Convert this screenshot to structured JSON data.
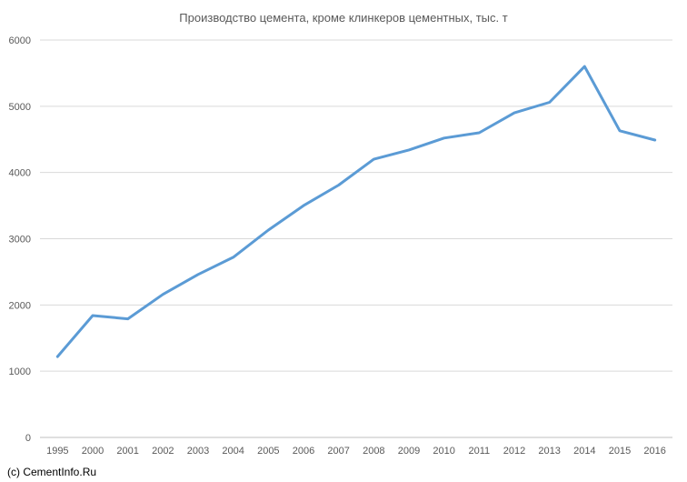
{
  "chart_data": {
    "type": "line",
    "title": "Производство цемента, кроме клинкеров цементных, тыс. т",
    "xlabel": "",
    "ylabel": "",
    "categories": [
      "1995",
      "2000",
      "2001",
      "2002",
      "2003",
      "2004",
      "2005",
      "2006",
      "2007",
      "2008",
      "2009",
      "2010",
      "2011",
      "2012",
      "2013",
      "2014",
      "2015",
      "2016"
    ],
    "series": [
      {
        "name": "",
        "values": [
          1220,
          1840,
          1790,
          2160,
          2460,
          2720,
          3130,
          3500,
          3810,
          4200,
          4340,
          4520,
          4600,
          4900,
          5060,
          5600,
          4630,
          4490
        ]
      }
    ],
    "ylim": [
      0,
      6000
    ],
    "yticks": [
      0,
      1000,
      2000,
      3000,
      4000,
      5000,
      6000
    ],
    "grid": true,
    "legend": "none",
    "line_color": "#5B9BD5",
    "grid_color": "#D9D9D9",
    "axis_color": "#BFBFBF",
    "label_color": "#595959"
  },
  "footer": {
    "credit": "(c) CementInfo.Ru"
  }
}
